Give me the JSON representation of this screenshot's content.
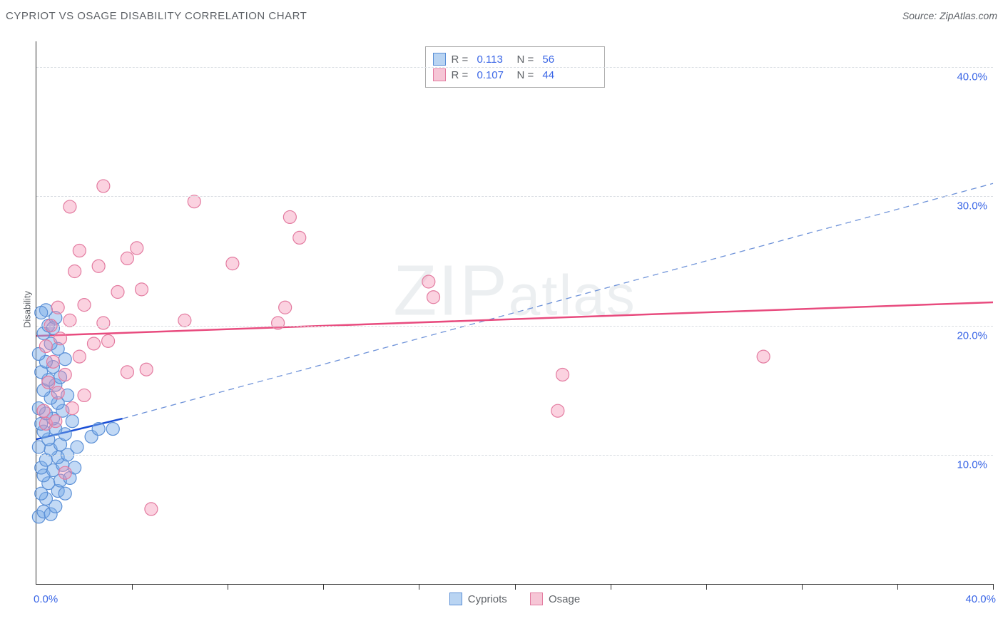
{
  "header": {
    "title": "CYPRIOT VS OSAGE DISABILITY CORRELATION CHART",
    "source": "Source: ZipAtlas.com"
  },
  "ylabel": "Disability",
  "axis_label_color": "#5f6368",
  "tick_label_color": "#3a66e6",
  "watermark_text": "ZIPatlas",
  "watermark_color": "rgba(120,144,176,0.14)",
  "chart": {
    "type": "scatter",
    "xlim": [
      0,
      40
    ],
    "ylim": [
      0,
      42
    ],
    "x_axis": {
      "corner_left_label": "0.0%",
      "corner_right_label": "40.0%",
      "tick_positions": [
        4,
        8,
        12,
        16,
        20,
        24,
        28,
        32,
        36,
        40
      ]
    },
    "y_axis": {
      "gridlines": [
        {
          "value": 10,
          "label": "10.0%"
        },
        {
          "value": 20,
          "label": "20.0%"
        },
        {
          "value": 30,
          "label": "30.0%"
        },
        {
          "value": 40,
          "label": "40.0%"
        }
      ],
      "grid_color": "#d9dde2"
    },
    "marker_radius": 9,
    "marker_stroke_width": 1.2,
    "series": [
      {
        "id": "cypriots",
        "label": "Cypriots",
        "fill": "rgba(120,170,232,0.45)",
        "stroke": "#5a8fd6",
        "swatch_fill": "#b9d4f2",
        "swatch_border": "#5a8fd6",
        "R": "0.113",
        "N": "56",
        "trend": {
          "color": "#1a4fd6",
          "width": 2.5,
          "dash": "none",
          "solid_segment": {
            "x1": 0,
            "y1": 11.2,
            "x2": 3.6,
            "y2": 12.8
          },
          "dashed_segment": {
            "x1": 3.6,
            "y1": 12.8,
            "x2": 40,
            "y2": 31,
            "dash": "8 6",
            "width": 1.3,
            "color": "#6f93d9"
          }
        },
        "points": [
          [
            0.1,
            5.2
          ],
          [
            0.3,
            5.6
          ],
          [
            0.6,
            5.4
          ],
          [
            0.8,
            6.0
          ],
          [
            0.4,
            6.6
          ],
          [
            0.2,
            7.0
          ],
          [
            0.9,
            7.2
          ],
          [
            1.2,
            7.0
          ],
          [
            0.5,
            7.8
          ],
          [
            1.0,
            8.0
          ],
          [
            0.3,
            8.4
          ],
          [
            1.4,
            8.2
          ],
          [
            0.7,
            8.8
          ],
          [
            0.2,
            9.0
          ],
          [
            1.1,
            9.2
          ],
          [
            1.6,
            9.0
          ],
          [
            0.4,
            9.6
          ],
          [
            0.9,
            9.8
          ],
          [
            1.3,
            10.0
          ],
          [
            0.6,
            10.4
          ],
          [
            0.1,
            10.6
          ],
          [
            1.0,
            10.8
          ],
          [
            1.7,
            10.6
          ],
          [
            0.5,
            11.2
          ],
          [
            2.3,
            11.4
          ],
          [
            1.2,
            11.6
          ],
          [
            0.3,
            11.8
          ],
          [
            0.8,
            12.0
          ],
          [
            2.6,
            12.0
          ],
          [
            3.2,
            12.0
          ],
          [
            0.2,
            12.4
          ],
          [
            1.5,
            12.6
          ],
          [
            0.7,
            12.8
          ],
          [
            0.4,
            13.2
          ],
          [
            1.1,
            13.4
          ],
          [
            0.1,
            13.6
          ],
          [
            0.9,
            14.0
          ],
          [
            0.6,
            14.4
          ],
          [
            1.3,
            14.6
          ],
          [
            0.3,
            15.0
          ],
          [
            0.8,
            15.4
          ],
          [
            0.5,
            15.8
          ],
          [
            1.0,
            16.0
          ],
          [
            0.2,
            16.4
          ],
          [
            0.7,
            16.8
          ],
          [
            0.4,
            17.2
          ],
          [
            1.2,
            17.4
          ],
          [
            0.1,
            17.8
          ],
          [
            0.9,
            18.2
          ],
          [
            0.6,
            18.6
          ],
          [
            0.3,
            19.4
          ],
          [
            0.5,
            20.0
          ],
          [
            0.8,
            20.6
          ],
          [
            0.4,
            21.2
          ],
          [
            0.2,
            21.0
          ],
          [
            0.7,
            19.8
          ]
        ]
      },
      {
        "id": "osage",
        "label": "Osage",
        "fill": "rgba(244,143,177,0.40)",
        "stroke": "#e37ba0",
        "swatch_fill": "#f6c6d6",
        "swatch_border": "#e37ba0",
        "R": "0.107",
        "N": "44",
        "trend": {
          "color": "#e84b7e",
          "width": 2.5,
          "dash": "none",
          "solid_segment": {
            "x1": 0,
            "y1": 19.2,
            "x2": 40,
            "y2": 21.8
          }
        },
        "points": [
          [
            0.4,
            12.4
          ],
          [
            0.8,
            12.6
          ],
          [
            0.3,
            13.4
          ],
          [
            1.5,
            13.6
          ],
          [
            0.9,
            14.8
          ],
          [
            2.0,
            14.6
          ],
          [
            0.5,
            15.6
          ],
          [
            1.2,
            16.2
          ],
          [
            3.8,
            16.4
          ],
          [
            4.6,
            16.6
          ],
          [
            0.7,
            17.2
          ],
          [
            1.8,
            17.6
          ],
          [
            0.4,
            18.4
          ],
          [
            2.4,
            18.6
          ],
          [
            1.0,
            19.0
          ],
          [
            3.0,
            18.8
          ],
          [
            0.6,
            20.0
          ],
          [
            1.4,
            20.4
          ],
          [
            2.8,
            20.2
          ],
          [
            6.2,
            20.4
          ],
          [
            10.1,
            20.2
          ],
          [
            0.9,
            21.4
          ],
          [
            2.0,
            21.6
          ],
          [
            10.4,
            21.4
          ],
          [
            16.6,
            22.2
          ],
          [
            3.4,
            22.6
          ],
          [
            4.4,
            22.8
          ],
          [
            1.6,
            24.2
          ],
          [
            2.6,
            24.6
          ],
          [
            3.8,
            25.2
          ],
          [
            8.2,
            24.8
          ],
          [
            1.8,
            25.8
          ],
          [
            4.2,
            26.0
          ],
          [
            11.0,
            26.8
          ],
          [
            10.6,
            28.4
          ],
          [
            16.4,
            23.4
          ],
          [
            6.6,
            29.6
          ],
          [
            2.8,
            30.8
          ],
          [
            1.4,
            29.2
          ],
          [
            1.2,
            8.6
          ],
          [
            4.8,
            5.8
          ],
          [
            21.8,
            13.4
          ],
          [
            22.0,
            16.2
          ],
          [
            30.4,
            17.6
          ]
        ]
      }
    ]
  },
  "legend_bottom": [
    {
      "label": "Cypriots",
      "fill": "#b9d4f2",
      "border": "#5a8fd6"
    },
    {
      "label": "Osage",
      "fill": "#f6c6d6",
      "border": "#e37ba0"
    }
  ]
}
